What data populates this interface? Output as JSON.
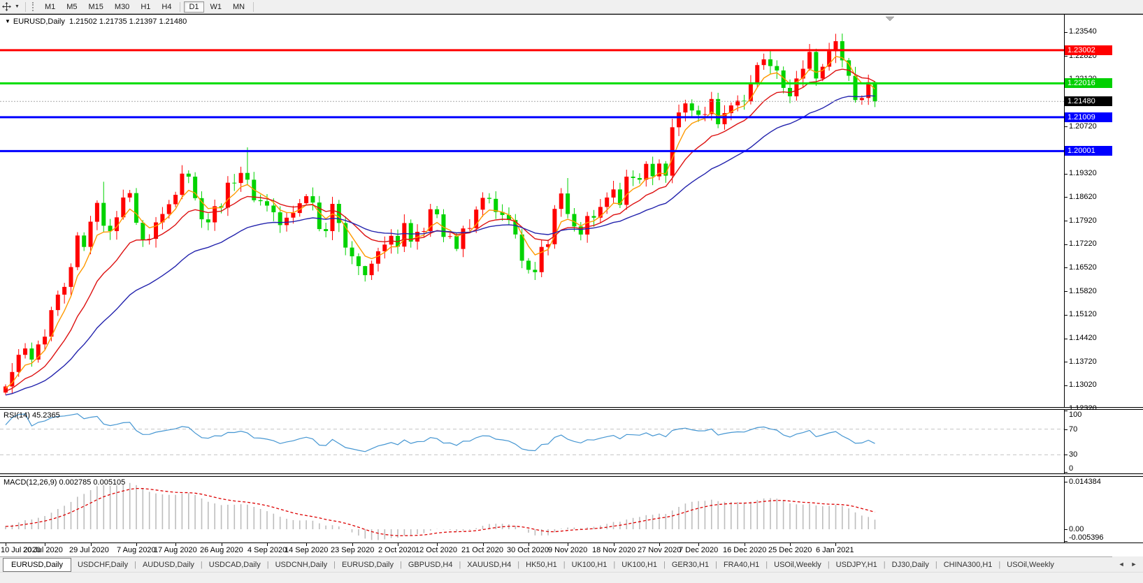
{
  "toolbar": {
    "cursor_icon": "crosshair-cursor-icon",
    "dropdown_icon": "▼",
    "timeframes": [
      {
        "label": "M1",
        "active": false
      },
      {
        "label": "M5",
        "active": false
      },
      {
        "label": "M15",
        "active": false
      },
      {
        "label": "M30",
        "active": false
      },
      {
        "label": "H1",
        "active": false
      },
      {
        "label": "H4",
        "active": false
      },
      {
        "label": "D1",
        "active": true
      },
      {
        "label": "W1",
        "active": false
      },
      {
        "label": "MN",
        "active": false
      }
    ]
  },
  "chart": {
    "collapse_icon": "▼",
    "title_symbol": "EURUSD,Daily",
    "title_ohlc": "1.21502 1.21735 1.21397 1.21480",
    "price_axis_ticks": [
      "1.23540",
      "1.22820",
      "1.22120",
      "1.21420",
      "1.20720",
      "1.20020",
      "1.19320",
      "1.18620",
      "1.17920",
      "1.17220",
      "1.16520",
      "1.15820",
      "1.15120",
      "1.14420",
      "1.13720",
      "1.13020",
      "1.12320"
    ],
    "hlines": [
      {
        "price": 1.23002,
        "color": "#ff0000",
        "width": 3
      },
      {
        "price": 1.22016,
        "color": "#00dd00",
        "width": 3
      },
      {
        "price": 1.21009,
        "color": "#0000ff",
        "width": 3
      },
      {
        "price": 1.20001,
        "color": "#0000ff",
        "width": 3
      }
    ],
    "current_price_line": {
      "price": 1.2148,
      "color": "#a8a8a8"
    },
    "badges": [
      {
        "text": "1.23002",
        "value": 1.23002,
        "bg": "#ff0000"
      },
      {
        "text": "1.22016",
        "value": 1.22016,
        "bg": "#00d000"
      },
      {
        "text": "1.21480",
        "value": 1.2148,
        "bg": "#000000"
      },
      {
        "text": "1.21009",
        "value": 1.21009,
        "bg": "#0000ff"
      },
      {
        "text": "1.20001",
        "value": 1.20001,
        "bg": "#0000ff"
      }
    ],
    "shift_marker_icon": "chart-shift-triangle-icon"
  },
  "chart_data": {
    "type": "candlestick",
    "symbol": "EURUSD",
    "timeframe": "Daily",
    "up_color": "#ff0000",
    "down_color": "#00d300",
    "closes": [
      1.13,
      1.1343,
      1.1394,
      1.1413,
      1.138,
      1.1425,
      1.1448,
      1.1527,
      1.1573,
      1.1596,
      1.1655,
      1.1749,
      1.1715,
      1.179,
      1.1846,
      1.1778,
      1.1762,
      1.1803,
      1.1862,
      1.1875,
      1.1787,
      1.1737,
      1.1739,
      1.1788,
      1.1813,
      1.1842,
      1.187,
      1.1933,
      1.1924,
      1.186,
      1.1797,
      1.1788,
      1.1836,
      1.1832,
      1.1906,
      1.1905,
      1.1935,
      1.1915,
      1.1854,
      1.1851,
      1.1838,
      1.1818,
      1.178,
      1.1802,
      1.1816,
      1.1845,
      1.1866,
      1.1847,
      1.1768,
      1.1762,
      1.1843,
      1.1786,
      1.1713,
      1.1687,
      1.1658,
      1.1631,
      1.1665,
      1.1702,
      1.1722,
      1.1748,
      1.1716,
      1.1786,
      1.1731,
      1.176,
      1.1762,
      1.1827,
      1.1812,
      1.1745,
      1.1747,
      1.1709,
      1.177,
      1.1771,
      1.1826,
      1.1861,
      1.1858,
      1.1819,
      1.181,
      1.1795,
      1.1752,
      1.1674,
      1.1647,
      1.164,
      1.1715,
      1.1723,
      1.1828,
      1.1874,
      1.1813,
      1.1776,
      1.1752,
      1.1807,
      1.1802,
      1.1834,
      1.1862,
      1.1886,
      1.184,
      1.1924,
      1.192,
      1.1915,
      1.1962,
      1.1925,
      1.1963,
      1.1927,
      1.2071,
      1.2115,
      1.2142,
      1.2121,
      1.2108,
      1.211,
      1.2155,
      1.208,
      1.2113,
      1.2136,
      1.215,
      1.2148,
      1.22,
      1.2256,
      1.2273,
      1.2253,
      1.224,
      1.2188,
      1.2163,
      1.2216,
      1.2245,
      1.2295,
      1.2216,
      1.2251,
      1.2297,
      1.2327,
      1.227,
      1.2224,
      1.2152,
      1.2158,
      1.2205,
      1.2148
    ],
    "wick_overrides": {
      "15": [
        1.1909,
        1.1758
      ],
      "37": [
        1.2011,
        1.1898
      ],
      "55": [
        1.1659,
        1.1612
      ],
      "86": [
        1.192,
        1.18
      ],
      "127": [
        1.2349,
        1.2262
      ],
      "133": [
        1.2208,
        1.2131
      ]
    },
    "moving_averages": [
      {
        "name": "fast-ma",
        "period": 5,
        "color": "#ff9900"
      },
      {
        "name": "mid-ma",
        "period": 13,
        "color": "#dd1111"
      },
      {
        "name": "slow-ma",
        "period": 30,
        "color": "#2323ad"
      }
    ],
    "date_labels": [
      {
        "index": 0,
        "label": "10 Jul 2020"
      },
      {
        "index": 6,
        "label": "20 Jul 2020"
      },
      {
        "index": 13,
        "label": "29 Jul 2020"
      },
      {
        "index": 20,
        "label": "7 Aug 2020"
      },
      {
        "index": 26,
        "label": "17 Aug 2020"
      },
      {
        "index": 33,
        "label": "26 Aug 2020"
      },
      {
        "index": 40,
        "label": "4 Sep 2020"
      },
      {
        "index": 46,
        "label": "14 Sep 2020"
      },
      {
        "index": 53,
        "label": "23 Sep 2020"
      },
      {
        "index": 60,
        "label": "2 Oct 2020"
      },
      {
        "index": 66,
        "label": "12 Oct 2020"
      },
      {
        "index": 73,
        "label": "21 Oct 2020"
      },
      {
        "index": 80,
        "label": "30 Oct 2020"
      },
      {
        "index": 86,
        "label": "9 Nov 2020"
      },
      {
        "index": 93,
        "label": "18 Nov 2020"
      },
      {
        "index": 100,
        "label": "27 Nov 2020"
      },
      {
        "index": 106,
        "label": "7 Dec 2020"
      },
      {
        "index": 113,
        "label": "16 Dec 2020"
      },
      {
        "index": 120,
        "label": "25 Dec 2020"
      },
      {
        "index": 127,
        "label": "6 Jan 2021"
      }
    ]
  },
  "rsi": {
    "label": "RSI(14) 45.2365",
    "period": 14,
    "line_color": "#4596d2",
    "level_labels": [
      {
        "text": "100",
        "value": 100
      },
      {
        "text": "70",
        "value": 70
      },
      {
        "text": "30",
        "value": 30
      },
      {
        "text": "0",
        "value": 0
      }
    ],
    "dashed_levels": [
      70,
      30
    ]
  },
  "macd": {
    "label": "MACD(12,26,9) 0.002785 0.005105",
    "fast": 12,
    "slow": 26,
    "signal": 9,
    "histogram_color": "#bdbdbd",
    "signal_color": "#dd0000",
    "axis_labels": [
      {
        "text": "0.014384",
        "value": 0.014384
      },
      {
        "text": "0.00",
        "value": 0
      },
      {
        "text": "-0.005396",
        "value": -0.005396
      }
    ]
  },
  "tabs": {
    "items": [
      {
        "label": "EURUSD,Daily",
        "active": true
      },
      {
        "label": "USDCHF,Daily",
        "active": false
      },
      {
        "label": "AUDUSD,Daily",
        "active": false
      },
      {
        "label": "USDCAD,Daily",
        "active": false
      },
      {
        "label": "USDCNH,Daily",
        "active": false
      },
      {
        "label": "EURUSD,Daily",
        "active": false
      },
      {
        "label": "GBPUSD,H4",
        "active": false
      },
      {
        "label": "XAUUSD,H4",
        "active": false
      },
      {
        "label": "HK50,H1",
        "active": false
      },
      {
        "label": "UK100,H1",
        "active": false
      },
      {
        "label": "UK100,H1",
        "active": false
      },
      {
        "label": "GER30,H1",
        "active": false
      },
      {
        "label": "FRA40,H1",
        "active": false
      },
      {
        "label": "USOil,Weekly",
        "active": false
      },
      {
        "label": "USDJPY,H1",
        "active": false
      },
      {
        "label": "DJ30,Daily",
        "active": false
      },
      {
        "label": "CHINA300,H1",
        "active": false
      },
      {
        "label": "USOil,Weekly",
        "active": false
      }
    ],
    "scroll_left": "◄",
    "scroll_right": "►"
  }
}
